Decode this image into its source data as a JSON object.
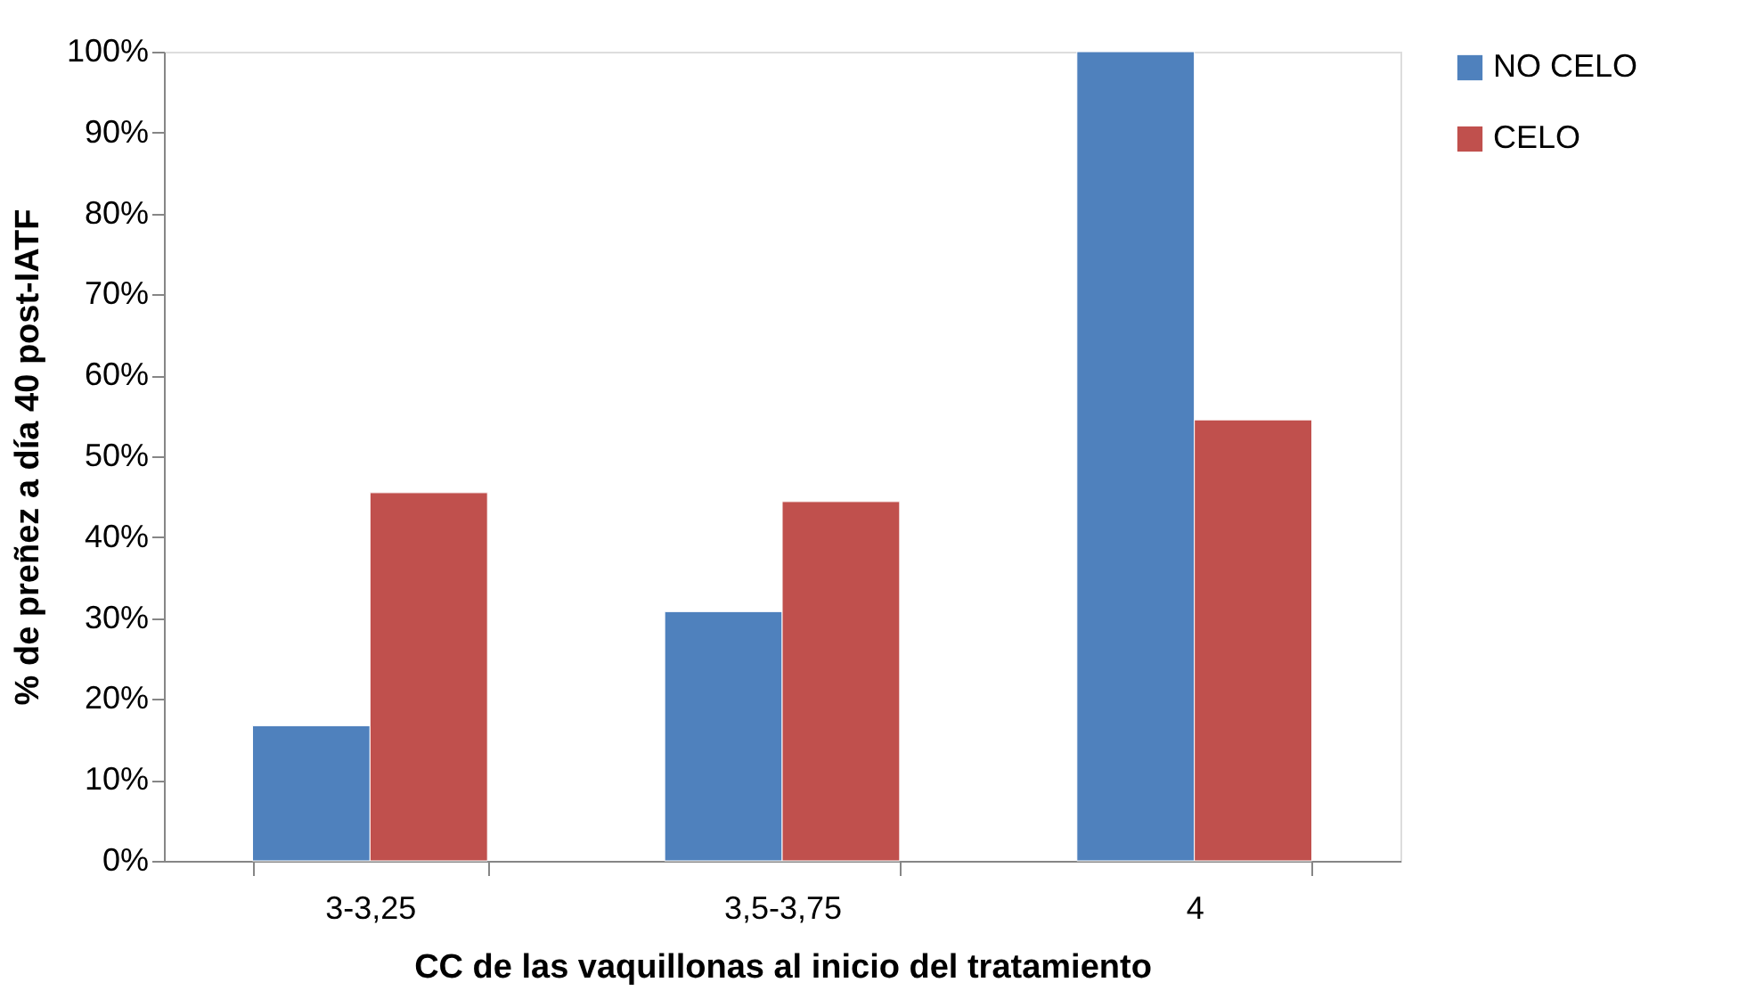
{
  "chart_data": {
    "type": "bar",
    "xlabel": "CC de las vaquillonas al inicio del tratamiento",
    "ylabel": "% de preñez a día 40 post-IATF",
    "categories": [
      "3-3,25",
      "3,5-3,75",
      "4"
    ],
    "series": [
      {
        "name": "NO CELO",
        "color": "#4f81bd",
        "values": [
          16.7,
          30.8,
          100
        ]
      },
      {
        "name": "CELO",
        "color": "#c0504d",
        "values": [
          45.5,
          44.4,
          54.5
        ]
      }
    ],
    "ylim": [
      0,
      100
    ],
    "yticks": [
      {
        "value": 0,
        "label": "0%"
      },
      {
        "value": 10,
        "label": "10%"
      },
      {
        "value": 20,
        "label": "20%"
      },
      {
        "value": 30,
        "label": "30%"
      },
      {
        "value": 40,
        "label": "40%"
      },
      {
        "value": 50,
        "label": "50%"
      },
      {
        "value": 60,
        "label": "60%"
      },
      {
        "value": 70,
        "label": "70%"
      },
      {
        "value": 80,
        "label": "80%"
      },
      {
        "value": 90,
        "label": "90%"
      },
      {
        "value": 100,
        "label": "100%"
      }
    ],
    "grid": false,
    "legend": "right"
  }
}
